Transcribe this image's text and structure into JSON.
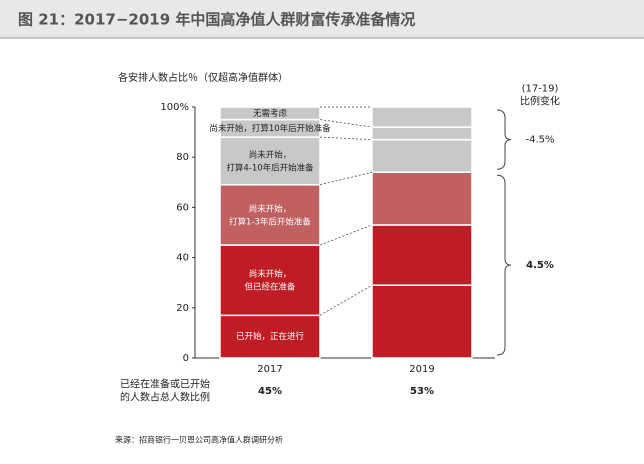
{
  "chart_data": {
    "type": "stacked_bar",
    "title": "图 21：2017−2019 年中国高净值人群财富传承准备情况",
    "y_label": "各安排人数占比％（仅超高净值群体）",
    "categories": [
      "2017",
      "2019"
    ],
    "series": [
      {
        "name": "已开始，正在进行",
        "color": "#c01c24",
        "values": [
          17,
          29
        ]
      },
      {
        "name": "尚未开始，\n但已经在准备",
        "color": "#c01c24",
        "values": [
          28,
          24
        ]
      },
      {
        "name": "尚未开始，\n打算1-3年后开始准备",
        "color": "#c06060",
        "values": [
          24,
          21
        ]
      },
      {
        "name": "尚未开始，\n打算4-10年后开始准备",
        "color": "#c8c8c8",
        "values": [
          19,
          13
        ]
      },
      {
        "name": "尚未开始，打算10年后开始准备",
        "color": "#c8c8c8",
        "values": [
          7,
          5
        ]
      },
      {
        "name": "无需考虑",
        "color": "#c8c8c8",
        "values": [
          5,
          8
        ]
      }
    ],
    "ylim": [
      0,
      100
    ],
    "yticks": [
      0,
      20,
      40,
      60,
      80,
      {
        "value": 100,
        "label": "100%"
      }
    ],
    "change_header": "(17-19)\n比例变化",
    "change": {
      "values": [
        -4.5,
        4.5
      ],
      "value_labels": [
        "-4.5%",
        "4.5%"
      ]
    },
    "totals": {
      "label": "已经在准备或已开始\n的人数占总人数比例",
      "values": [
        45,
        53
      ],
      "value_labels": [
        "45%",
        "53%"
      ]
    },
    "source": "来源：招商银行一贝恩公司高净值人群调研分析"
  }
}
